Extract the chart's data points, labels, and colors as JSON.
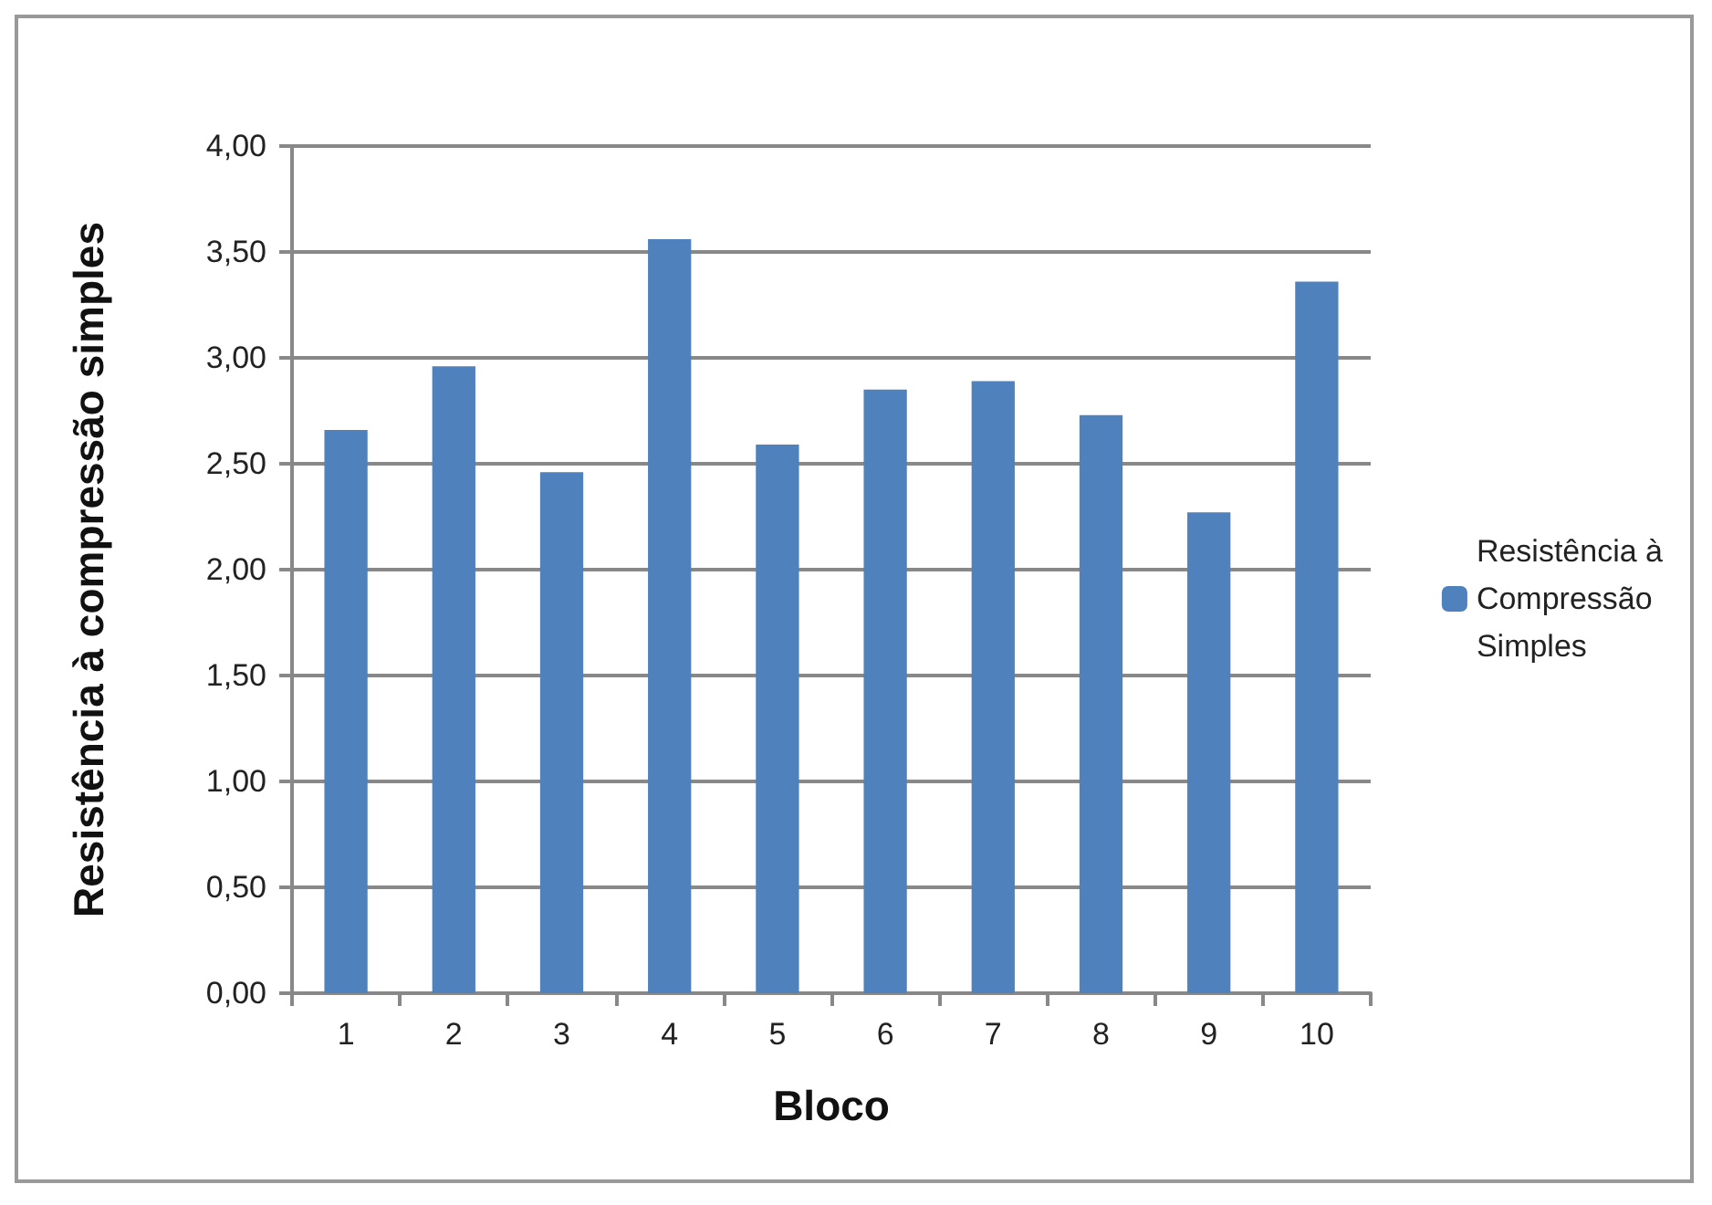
{
  "chart_data": {
    "type": "bar",
    "xlabel": "Bloco",
    "ylabel": "Resistência à compressão simples",
    "categories": [
      "1",
      "2",
      "3",
      "4",
      "5",
      "6",
      "7",
      "8",
      "9",
      "10"
    ],
    "series": [
      {
        "name": "Resistência à\nCompressão\nSimples",
        "color": "#4f81bd",
        "values": [
          2.66,
          2.96,
          2.46,
          3.56,
          2.59,
          2.85,
          2.89,
          2.73,
          2.27,
          3.36
        ]
      }
    ],
    "ylim": [
      0,
      4
    ],
    "yticks": [
      {
        "value": 0,
        "label": "0,00"
      },
      {
        "value": 0.5,
        "label": "0,50"
      },
      {
        "value": 1,
        "label": "1,00"
      },
      {
        "value": 1.5,
        "label": "1,50"
      },
      {
        "value": 2,
        "label": "2,00"
      },
      {
        "value": 2.5,
        "label": "2,50"
      },
      {
        "value": 3,
        "label": "3,00"
      },
      {
        "value": 3.5,
        "label": "3,50"
      },
      {
        "value": 4,
        "label": "4,00"
      }
    ],
    "grid": "y",
    "legend": "right"
  }
}
